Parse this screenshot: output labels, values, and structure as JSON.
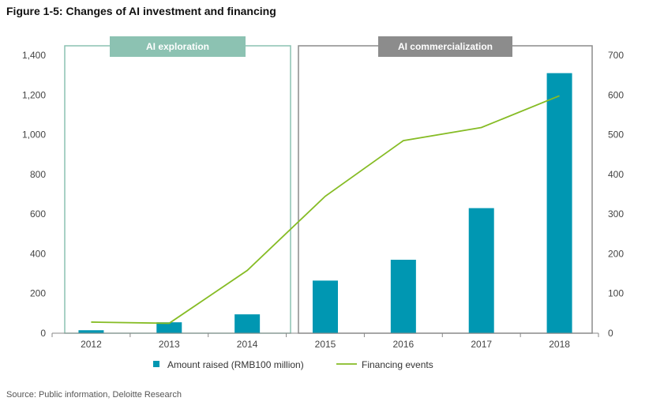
{
  "figure_title": "Figure 1-5: Changes of AI investment and financing",
  "source": "Source: Public information, Deloitte Research",
  "colors": {
    "bar": "#0097b2",
    "line": "#86bc25",
    "exploration": "#8cc2b2",
    "commercialization": "#8c8c8c",
    "axis": "#888888"
  },
  "phases": [
    {
      "label": "AI exploration",
      "from": "2012",
      "to": "2014"
    },
    {
      "label": "AI commercialization",
      "from": "2015",
      "to": "2018"
    }
  ],
  "chart_data": {
    "type": "bar",
    "title": "Figure 1-5: Changes of AI investment and financing",
    "categories": [
      "2012",
      "2013",
      "2014",
      "2015",
      "2016",
      "2017",
      "2018"
    ],
    "series": [
      {
        "name": "Amount raised (RMB100 million)",
        "type": "bar",
        "axis": "left",
        "values": [
          15,
          55,
          95,
          265,
          370,
          630,
          1310
        ]
      },
      {
        "name": "Financing events",
        "type": "line",
        "axis": "right",
        "values": [
          28,
          25,
          158,
          345,
          485,
          518,
          598
        ]
      }
    ],
    "y_left": {
      "range": [
        0,
        1400
      ],
      "ticks": [
        "0",
        "200",
        "400",
        "600",
        "800",
        "1,000",
        "1,200",
        "1,400"
      ]
    },
    "y_right": {
      "range": [
        0,
        700
      ],
      "ticks": [
        "0",
        "100",
        "200",
        "300",
        "400",
        "500",
        "600",
        "700"
      ]
    },
    "grid": false,
    "legend_position": "bottom"
  }
}
